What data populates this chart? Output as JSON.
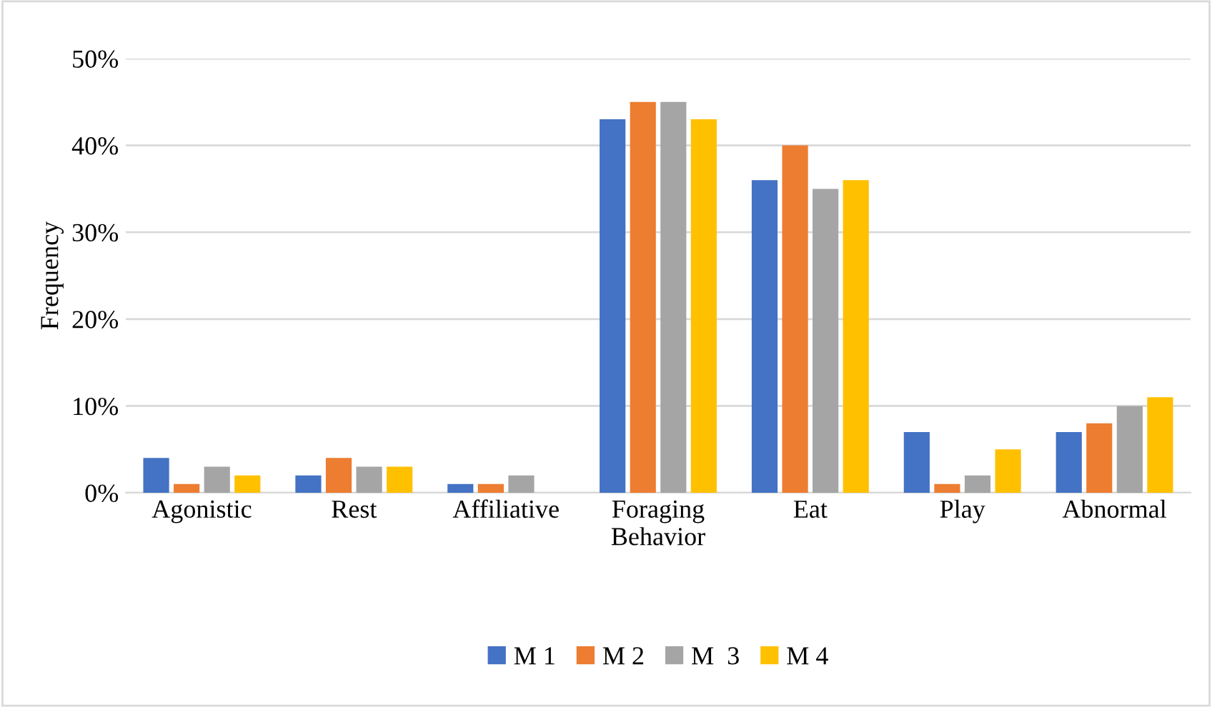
{
  "chart_data": {
    "type": "bar",
    "xlabel": "Behavior",
    "ylabel": "Frequency",
    "categories": [
      "Agonistic",
      "Rest",
      "Affiliative",
      "Foraging",
      "Eat",
      "Play",
      "Abnormal"
    ],
    "series": [
      {
        "name": "M 1",
        "color": "#4472c4",
        "values": [
          4,
          2,
          1,
          43,
          36,
          7,
          7
        ]
      },
      {
        "name": "M 2",
        "color": "#ed7d31",
        "values": [
          1,
          4,
          1,
          45,
          40,
          1,
          8
        ]
      },
      {
        "name": "M  3",
        "color": "#a5a5a5",
        "values": [
          3,
          3,
          2,
          45,
          35,
          2,
          10
        ]
      },
      {
        "name": "M 4",
        "color": "#ffc000",
        "values": [
          2,
          3,
          0,
          43,
          36,
          5,
          11
        ]
      }
    ],
    "ylim": [
      0,
      50
    ],
    "yticks": [
      {
        "value": 0,
        "label": "0%"
      },
      {
        "value": 10,
        "label": "10%"
      },
      {
        "value": 20,
        "label": "20%"
      },
      {
        "value": 30,
        "label": "30%"
      },
      {
        "value": 40,
        "label": "40%"
      },
      {
        "value": 50,
        "label": "50%"
      }
    ],
    "grid": "y",
    "legend": "bottom"
  }
}
